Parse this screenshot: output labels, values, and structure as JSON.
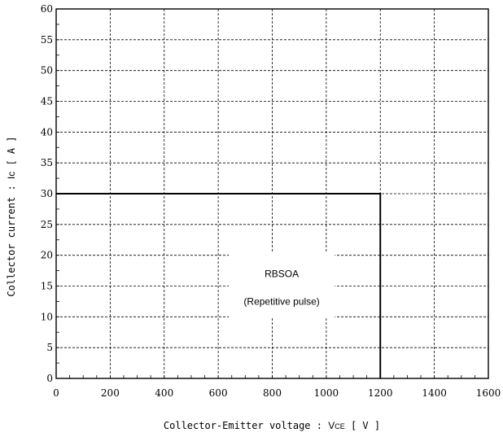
{
  "chart_data": {
    "type": "line",
    "title": "",
    "xlabel": "Collector-Emitter voltage : VCE [ V ]",
    "xlabel_main": "Collector-Emitter voltage : ",
    "xlabel_symbol": "V",
    "xlabel_subscript": "CE",
    "xlabel_unit": " [ V ]",
    "ylabel": "Collector current : Ic [ A ]",
    "ylabel_main": "Collector current : ",
    "ylabel_symbol": "Ic",
    "ylabel_unit": " [ A ]",
    "xlim": [
      0,
      1600
    ],
    "ylim": [
      0,
      60
    ],
    "x_ticks": [
      0,
      200,
      400,
      600,
      800,
      1000,
      1200,
      1400,
      1600
    ],
    "y_ticks": [
      0,
      5,
      10,
      15,
      20,
      25,
      30,
      35,
      40,
      45,
      50,
      55,
      60
    ],
    "grid": true,
    "grid_style": "dashed",
    "line_color": "#000000",
    "series": [
      {
        "x": [
          0,
          1200,
          1200
        ],
        "y": [
          30,
          30,
          0
        ]
      }
    ],
    "annotations": [
      {
        "text": "RBSOA",
        "x": 835,
        "y": 17
      },
      {
        "text": "(Repetitive pulse)",
        "x": 835,
        "y": 12.5
      }
    ]
  }
}
